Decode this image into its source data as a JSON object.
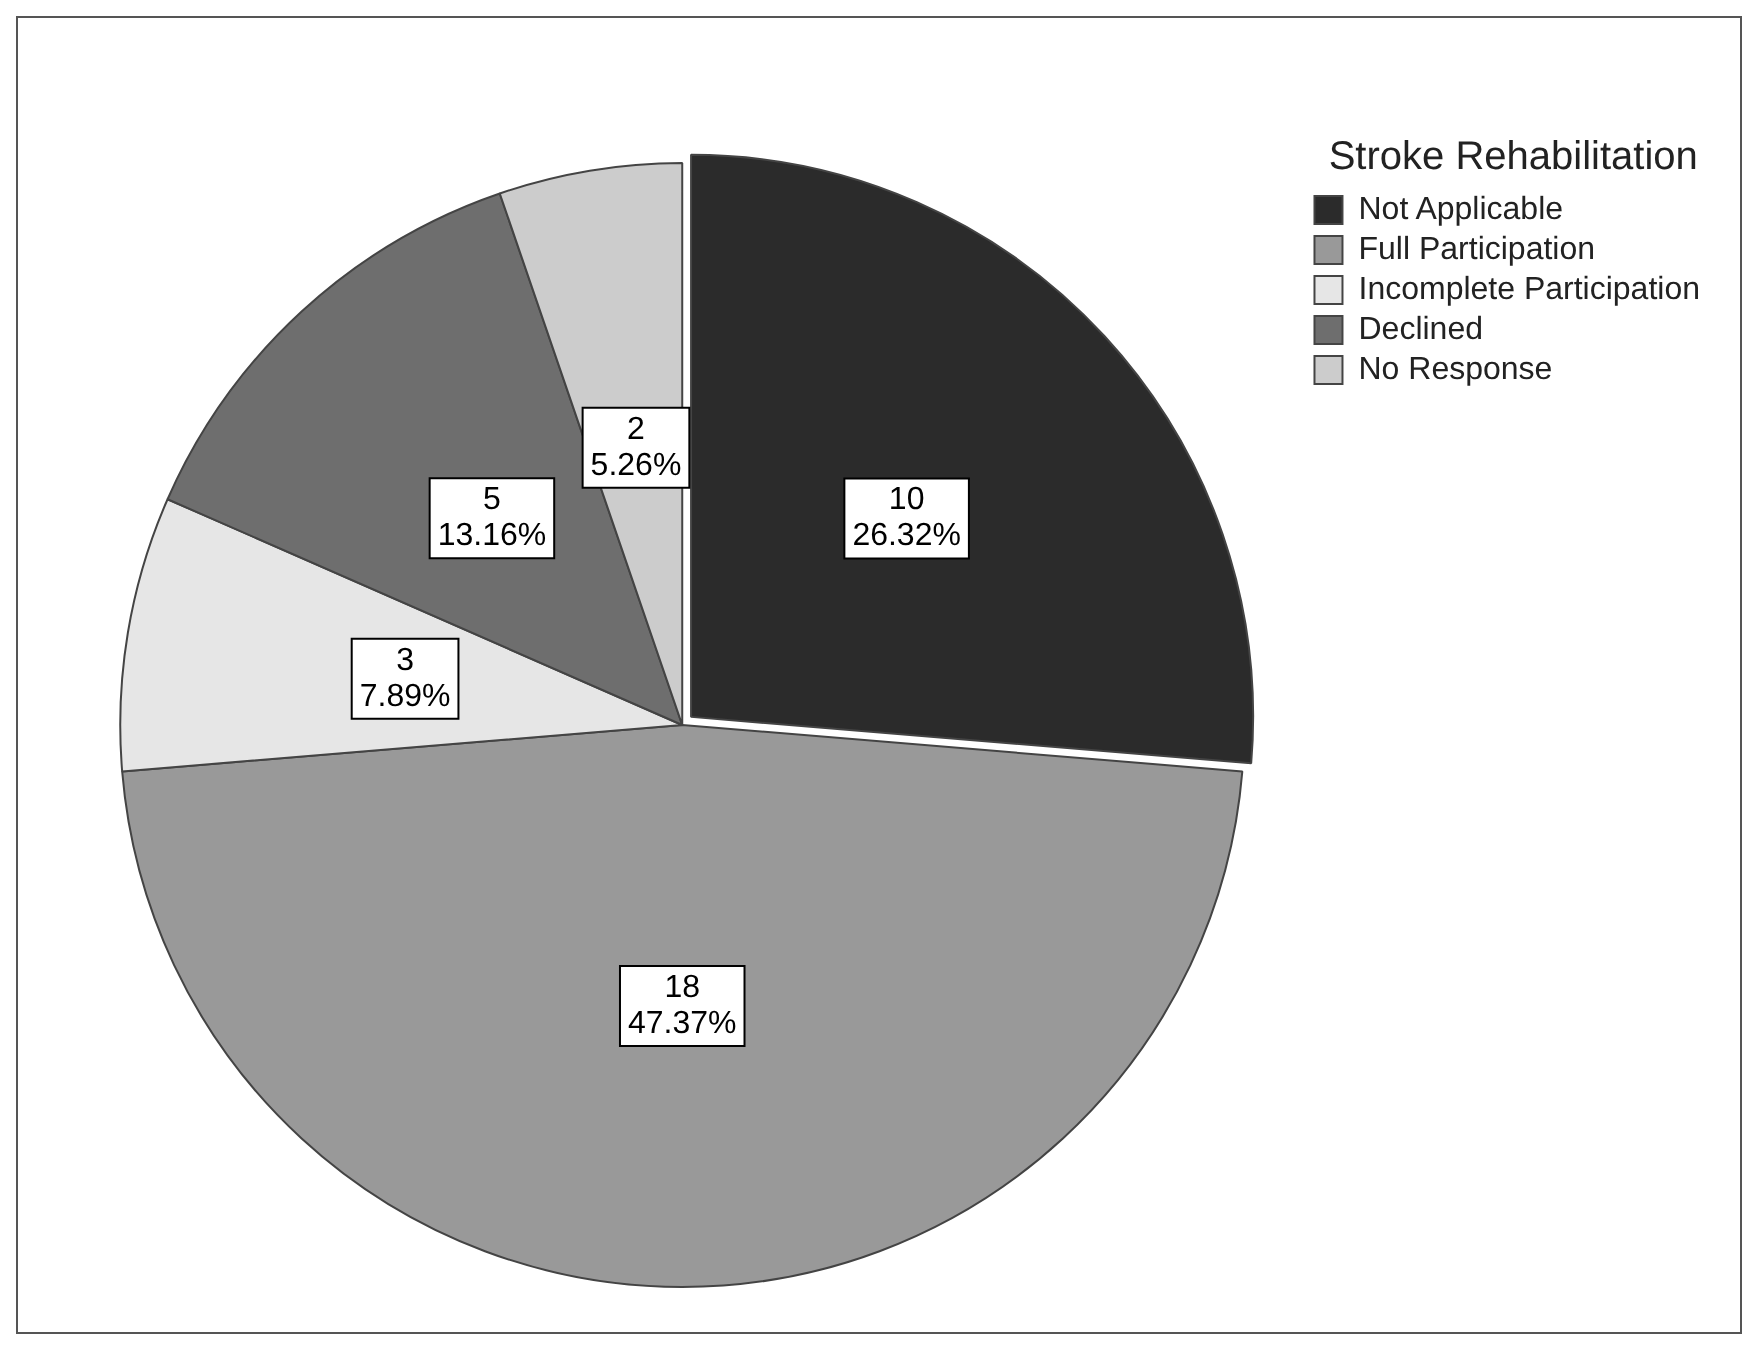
{
  "chart_data": {
    "type": "pie",
    "legend_title": "Stroke Rehabilitation",
    "categories": [
      "Not Applicable",
      "Full Participation",
      "Incomplete Participation",
      "Declined",
      "No Response"
    ],
    "values": [
      10,
      18,
      3,
      5,
      2
    ],
    "colors": [
      "#2b2b2b",
      "#999999",
      "#e6e6e6",
      "#6e6e6e",
      "#cccccc"
    ],
    "value_labels": [
      "10\n26.32%",
      "18\n47.37%",
      "3\n7.89%",
      "5\n13.16%",
      "2\n5.26%"
    ],
    "legend": "top right"
  }
}
